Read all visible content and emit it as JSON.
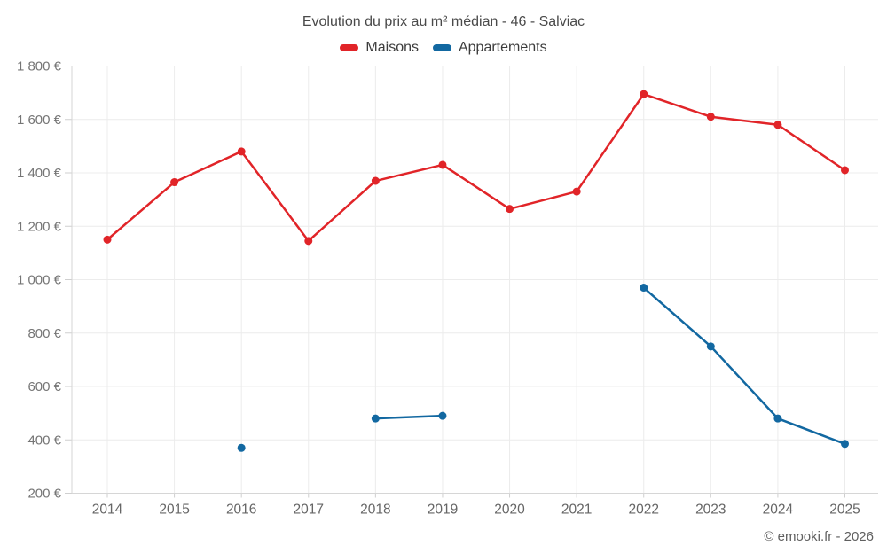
{
  "attribution": "© emooki.fr - 2026",
  "chart_data": {
    "type": "line",
    "title": "Evolution du prix au m² médian - 46 - Salviac",
    "categories": [
      "2014",
      "2015",
      "2016",
      "2017",
      "2018",
      "2019",
      "2020",
      "2021",
      "2022",
      "2023",
      "2024",
      "2025"
    ],
    "series": [
      {
        "name": "Maisons",
        "color": "#e12428",
        "values": [
          1150,
          1365,
          1480,
          1145,
          1370,
          1430,
          1265,
          1330,
          1695,
          1610,
          1580,
          1410
        ]
      },
      {
        "name": "Appartements",
        "color": "#1268a1",
        "values": [
          null,
          null,
          370,
          null,
          480,
          490,
          null,
          null,
          970,
          750,
          480,
          385
        ]
      }
    ],
    "ylabel": "",
    "xlabel": "",
    "ylim": [
      200,
      1800
    ],
    "ytick_step": 200,
    "ytick_labels": [
      "200 €",
      "400 €",
      "600 €",
      "800 €",
      "1 000 €",
      "1 200 €",
      "1 400 €",
      "1 600 €",
      "1 800 €"
    ],
    "currency_suffix": " €",
    "grid": true,
    "legend_position": "top",
    "marker": "circle"
  }
}
